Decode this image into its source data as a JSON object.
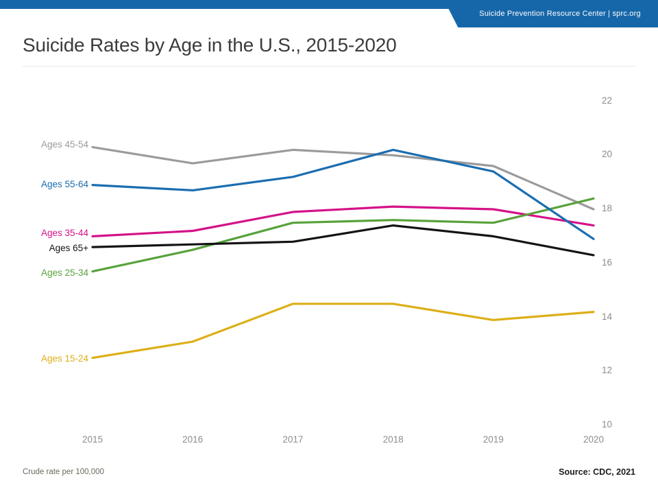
{
  "header": {
    "banner_text": "Suicide Prevention Resource Center  |  sprc.org",
    "accent_color": "#1667a9"
  },
  "title": "Suicide Rates by Age in the U.S., 2015-2020",
  "footer": {
    "note": "Crude rate per 100,000",
    "source": "Source: CDC, 2021"
  },
  "chart_data": {
    "type": "line",
    "title": "Suicide Rates by Age in the U.S., 2015-2020",
    "xlabel": "",
    "ylabel": "Crude rate per 100,000",
    "x": [
      2015,
      2016,
      2017,
      2018,
      2019,
      2020
    ],
    "ylim": [
      10,
      22
    ],
    "y_ticks": [
      22,
      20,
      18,
      16,
      14,
      12,
      10
    ],
    "grid": false,
    "legend_position": "inline-left-of-lines",
    "series": [
      {
        "name": "Ages 45-54",
        "color": "#9b9b9b",
        "values": [
          20.3,
          19.7,
          20.2,
          20.0,
          19.6,
          18.0
        ]
      },
      {
        "name": "Ages 35-44",
        "color": "#d41288",
        "values": [
          17.0,
          17.2,
          17.9,
          18.1,
          18.0,
          17.4
        ]
      },
      {
        "name": "Ages 25-34",
        "color": "#57a23b",
        "values": [
          15.7,
          16.5,
          17.5,
          17.6,
          17.5,
          18.4
        ]
      },
      {
        "name": "Ages 55-64",
        "color": "#1b6db0",
        "values": [
          18.9,
          18.7,
          19.2,
          20.2,
          19.4,
          16.9
        ]
      },
      {
        "name": "Ages 65+",
        "color": "#141414",
        "values": [
          16.6,
          16.7,
          16.8,
          17.4,
          17.0,
          16.3
        ]
      },
      {
        "name": "Ages 15-24",
        "color": "#dcaf17",
        "values": [
          12.5,
          13.1,
          14.5,
          14.5,
          13.9,
          14.2
        ]
      }
    ]
  }
}
